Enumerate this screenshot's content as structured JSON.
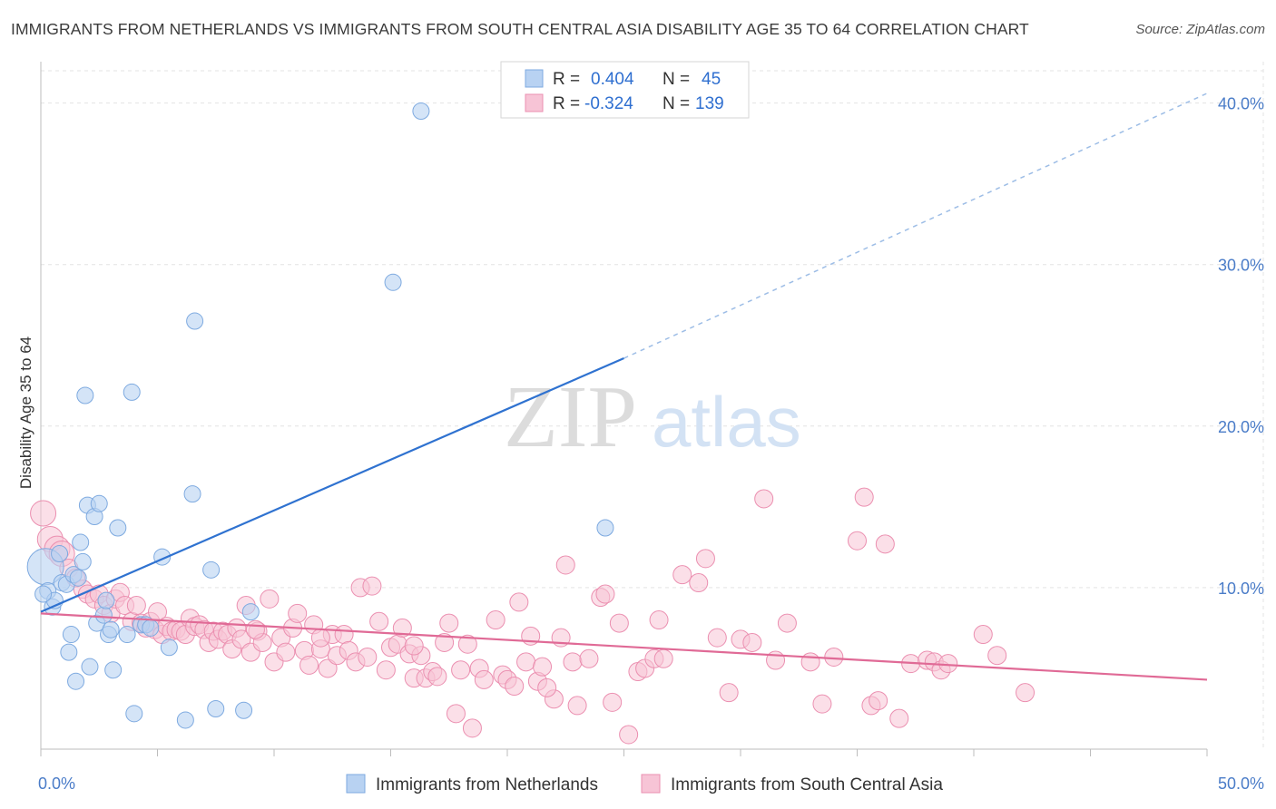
{
  "title": "IMMIGRANTS FROM NETHERLANDS VS IMMIGRANTS FROM SOUTH CENTRAL ASIA DISABILITY AGE 35 TO 64 CORRELATION CHART",
  "source": "Source: ZipAtlas.com",
  "watermark": {
    "zip": "ZIP",
    "atlas": "atlas"
  },
  "colors": {
    "blue_fill": "#b8d2f2",
    "blue_stroke": "#7eaae0",
    "blue_line": "#2f72d0",
    "pink_fill": "#f7c4d6",
    "pink_stroke": "#eb8fb0",
    "pink_line": "#e06a96",
    "tick_text": "#4a7cc8",
    "grid": "#e3e3e3"
  },
  "legend": {
    "rows": [
      {
        "r_label": "R =",
        "r_value": "0.404",
        "n_label": "N =",
        "n_value": "45",
        "color": "blue"
      },
      {
        "r_label": "R =",
        "r_value": "-0.324",
        "n_label": "N =",
        "n_value": "139",
        "color": "pink"
      }
    ]
  },
  "chart_data": {
    "type": "scatter",
    "title": "IMMIGRANTS FROM NETHERLANDS VS IMMIGRANTS FROM SOUTH CENTRAL ASIA DISABILITY AGE 35 TO 64 CORRELATION CHART",
    "xlabel": "",
    "ylabel": "Disability Age 35 to 64",
    "xlim": [
      0,
      50
    ],
    "ylim": [
      0,
      42
    ],
    "x_tick_labels": [
      "0.0%",
      "50.0%"
    ],
    "y_ticks": [
      10,
      20,
      30,
      40
    ],
    "y_tick_labels": [
      "10.0%",
      "20.0%",
      "30.0%",
      "40.0%"
    ],
    "grid": true,
    "legend_position": "top-center",
    "series": [
      {
        "name": "Immigrants from Netherlands",
        "color": "blue",
        "stats": {
          "R": 0.404,
          "N": 45
        },
        "trend": {
          "x": [
            0,
            25
          ],
          "y": [
            8.5,
            24.2
          ],
          "dashed_to": [
            50,
            40.6
          ]
        },
        "points": [
          [
            0.2,
            11.3
          ],
          [
            0.3,
            9.8
          ],
          [
            0.5,
            8.8
          ],
          [
            0.6,
            9.2
          ],
          [
            0.8,
            12.1
          ],
          [
            0.9,
            10.3
          ],
          [
            1.1,
            10.2
          ],
          [
            1.2,
            6.0
          ],
          [
            1.3,
            7.1
          ],
          [
            1.4,
            10.8
          ],
          [
            1.5,
            4.2
          ],
          [
            1.6,
            10.6
          ],
          [
            1.7,
            12.8
          ],
          [
            1.8,
            11.6
          ],
          [
            2.0,
            15.1
          ],
          [
            2.1,
            5.1
          ],
          [
            2.3,
            14.4
          ],
          [
            2.4,
            7.8
          ],
          [
            2.5,
            15.2
          ],
          [
            2.7,
            8.3
          ],
          [
            2.8,
            9.2
          ],
          [
            2.9,
            7.1
          ],
          [
            3.0,
            7.4
          ],
          [
            3.1,
            4.9
          ],
          [
            3.3,
            13.7
          ],
          [
            3.7,
            7.1
          ],
          [
            3.9,
            22.1
          ],
          [
            4.0,
            2.2
          ],
          [
            4.3,
            7.7
          ],
          [
            4.5,
            7.7
          ],
          [
            4.7,
            7.5
          ],
          [
            5.2,
            11.9
          ],
          [
            5.5,
            6.3
          ],
          [
            6.2,
            1.8
          ],
          [
            6.5,
            15.8
          ],
          [
            6.6,
            26.5
          ],
          [
            7.3,
            11.1
          ],
          [
            7.5,
            2.5
          ],
          [
            8.7,
            2.4
          ],
          [
            9.0,
            8.5
          ],
          [
            15.1,
            28.9
          ],
          [
            16.3,
            39.5
          ],
          [
            24.2,
            13.7
          ],
          [
            1.9,
            21.9
          ],
          [
            0.1,
            9.6
          ]
        ]
      },
      {
        "name": "Immigrants from South Central Asia",
        "color": "pink",
        "stats": {
          "R": -0.324,
          "N": 139
        },
        "trend": {
          "x": [
            0,
            50
          ],
          "y": [
            8.4,
            4.3
          ]
        },
        "points": [
          [
            0.1,
            14.6
          ],
          [
            0.4,
            13.0
          ],
          [
            0.7,
            12.4
          ],
          [
            0.9,
            12.1
          ],
          [
            1.2,
            11.2
          ],
          [
            1.5,
            10.6
          ],
          [
            1.8,
            9.9
          ],
          [
            2.0,
            9.6
          ],
          [
            2.3,
            9.3
          ],
          [
            2.5,
            9.6
          ],
          [
            2.7,
            8.9
          ],
          [
            3.0,
            8.4
          ],
          [
            3.2,
            9.3
          ],
          [
            3.4,
            9.7
          ],
          [
            3.6,
            8.9
          ],
          [
            3.9,
            7.9
          ],
          [
            4.1,
            8.9
          ],
          [
            4.3,
            7.8
          ],
          [
            4.5,
            7.5
          ],
          [
            4.7,
            7.9
          ],
          [
            4.9,
            7.4
          ],
          [
            5.0,
            8.5
          ],
          [
            5.2,
            7.1
          ],
          [
            5.4,
            7.6
          ],
          [
            5.6,
            7.3
          ],
          [
            5.8,
            7.4
          ],
          [
            6.0,
            7.3
          ],
          [
            6.2,
            7.1
          ],
          [
            6.4,
            8.1
          ],
          [
            6.6,
            7.6
          ],
          [
            6.8,
            7.7
          ],
          [
            7.0,
            7.4
          ],
          [
            7.2,
            6.6
          ],
          [
            7.4,
            7.3
          ],
          [
            7.6,
            6.8
          ],
          [
            7.8,
            7.3
          ],
          [
            8.0,
            7.1
          ],
          [
            8.2,
            6.2
          ],
          [
            8.4,
            7.5
          ],
          [
            8.6,
            6.8
          ],
          [
            8.8,
            8.9
          ],
          [
            9.0,
            6.0
          ],
          [
            9.3,
            7.3
          ],
          [
            9.5,
            6.6
          ],
          [
            9.8,
            9.3
          ],
          [
            10.0,
            5.4
          ],
          [
            10.3,
            6.9
          ],
          [
            10.5,
            6.0
          ],
          [
            10.8,
            7.5
          ],
          [
            11.0,
            8.4
          ],
          [
            11.3,
            6.1
          ],
          [
            11.5,
            5.2
          ],
          [
            11.7,
            7.7
          ],
          [
            12.0,
            6.2
          ],
          [
            12.3,
            5.0
          ],
          [
            12.5,
            7.1
          ],
          [
            12.7,
            5.8
          ],
          [
            13.0,
            7.1
          ],
          [
            13.2,
            6.1
          ],
          [
            13.5,
            5.4
          ],
          [
            13.7,
            10.0
          ],
          [
            14.0,
            5.7
          ],
          [
            14.2,
            10.1
          ],
          [
            14.5,
            7.9
          ],
          [
            14.8,
            4.9
          ],
          [
            15.0,
            6.3
          ],
          [
            15.3,
            6.5
          ],
          [
            15.5,
            7.5
          ],
          [
            15.8,
            5.9
          ],
          [
            16.0,
            4.4
          ],
          [
            16.3,
            5.8
          ],
          [
            16.5,
            4.4
          ],
          [
            16.8,
            4.8
          ],
          [
            17.0,
            4.5
          ],
          [
            17.3,
            6.6
          ],
          [
            17.5,
            7.8
          ],
          [
            17.8,
            2.2
          ],
          [
            18.0,
            4.9
          ],
          [
            18.3,
            6.5
          ],
          [
            18.5,
            1.3
          ],
          [
            18.8,
            5.0
          ],
          [
            19.0,
            4.3
          ],
          [
            19.5,
            8.0
          ],
          [
            19.8,
            4.6
          ],
          [
            20.0,
            4.3
          ],
          [
            20.3,
            3.9
          ],
          [
            20.5,
            9.1
          ],
          [
            20.8,
            5.4
          ],
          [
            21.0,
            7.0
          ],
          [
            21.3,
            4.2
          ],
          [
            21.5,
            5.1
          ],
          [
            22.0,
            3.1
          ],
          [
            22.3,
            6.9
          ],
          [
            22.5,
            11.4
          ],
          [
            22.8,
            5.4
          ],
          [
            23.0,
            2.7
          ],
          [
            23.5,
            5.6
          ],
          [
            24.0,
            9.4
          ],
          [
            24.2,
            9.6
          ],
          [
            24.5,
            2.9
          ],
          [
            24.8,
            7.8
          ],
          [
            25.2,
            0.9
          ],
          [
            25.6,
            4.8
          ],
          [
            25.9,
            5.0
          ],
          [
            26.3,
            5.6
          ],
          [
            26.7,
            5.6
          ],
          [
            27.5,
            10.8
          ],
          [
            28.2,
            10.3
          ],
          [
            28.5,
            11.8
          ],
          [
            29.0,
            6.9
          ],
          [
            29.5,
            3.5
          ],
          [
            30.0,
            6.8
          ],
          [
            30.5,
            6.6
          ],
          [
            31.0,
            15.5
          ],
          [
            31.5,
            5.5
          ],
          [
            32.0,
            7.8
          ],
          [
            33.0,
            5.4
          ],
          [
            33.5,
            2.8
          ],
          [
            34.0,
            5.7
          ],
          [
            35.0,
            12.9
          ],
          [
            35.3,
            15.6
          ],
          [
            35.6,
            2.7
          ],
          [
            35.9,
            3.0
          ],
          [
            36.2,
            12.7
          ],
          [
            36.8,
            1.9
          ],
          [
            37.3,
            5.3
          ],
          [
            38.0,
            5.5
          ],
          [
            38.3,
            5.4
          ],
          [
            38.6,
            4.9
          ],
          [
            38.9,
            5.3
          ],
          [
            40.4,
            7.1
          ],
          [
            41.0,
            5.8
          ],
          [
            42.2,
            3.5
          ],
          [
            16.0,
            6.4
          ],
          [
            12.0,
            6.9
          ],
          [
            9.2,
            7.4
          ],
          [
            26.5,
            8.0
          ],
          [
            21.7,
            3.8
          ]
        ]
      }
    ]
  }
}
